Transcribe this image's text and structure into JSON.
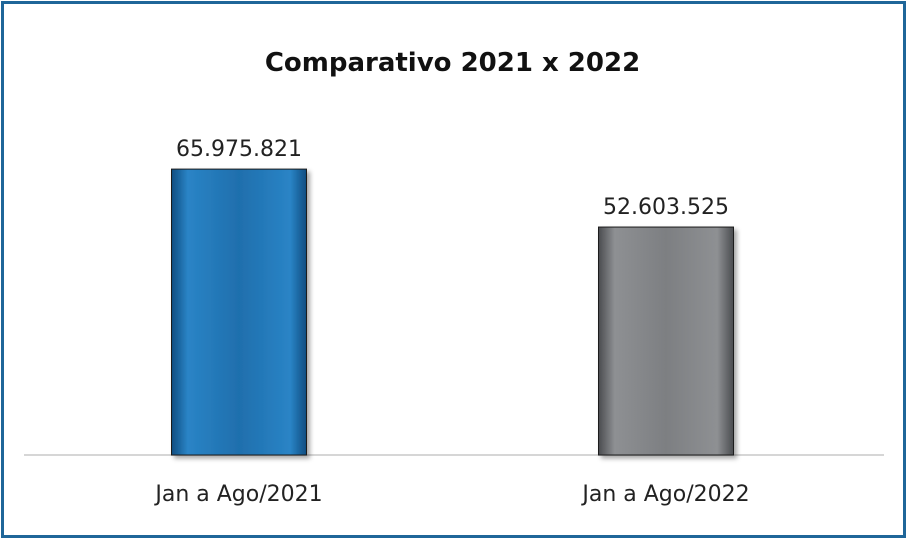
{
  "chart_data": {
    "type": "bar",
    "title": "Comparativo 2021 x 2022",
    "categories": [
      "Jan a Ago/2021",
      "Jan a Ago/2022"
    ],
    "values": [
      65975821,
      52603525
    ],
    "data_labels": [
      "65.975.821",
      "52.603.525"
    ],
    "colors": [
      "#1f6fad",
      "#7d7f82"
    ],
    "grid": false,
    "legend": "none",
    "ylim": [
      0,
      75000000
    ]
  }
}
